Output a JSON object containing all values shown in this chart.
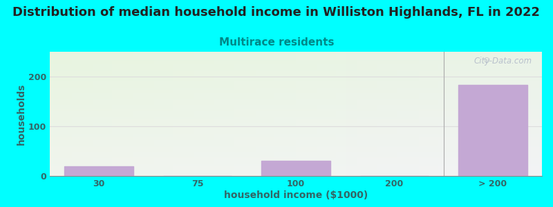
{
  "title": "Distribution of median household income in Williston Highlands, FL in 2022",
  "subtitle": "Multirace residents",
  "xlabel": "household income ($1000)",
  "ylabel": "households",
  "background_color": "#00FFFF",
  "bar_color": "#c4a8d4",
  "categories": [
    "30",
    "75",
    "100",
    "200",
    "> 200"
  ],
  "values": [
    20,
    0,
    30,
    0,
    183
  ],
  "ylim": [
    0,
    250
  ],
  "yticks": [
    0,
    100,
    200
  ],
  "title_fontsize": 13,
  "subtitle_fontsize": 11,
  "axis_label_fontsize": 10,
  "tick_fontsize": 9,
  "title_color": "#222222",
  "subtitle_color": "#008888",
  "axis_label_color": "#336666",
  "tick_color": "#336666",
  "watermark_text": "City-Data.com",
  "grid_color": "#dddddd",
  "bar_positions": [
    0,
    1,
    2,
    3,
    4
  ],
  "bar_width": 0.7
}
